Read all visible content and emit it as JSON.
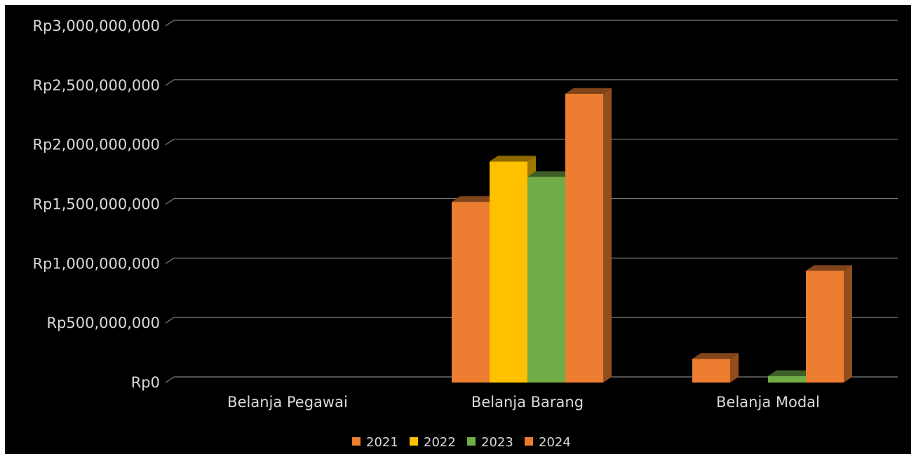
{
  "chart_data": {
    "type": "bar",
    "title": "",
    "xlabel": "",
    "ylabel": "",
    "categories": [
      "Belanja Pegawai",
      "Belanja Barang",
      "Belanja Modal"
    ],
    "series": [
      {
        "name": "2021",
        "color": "#ED7D31",
        "values": [
          0,
          1520000000,
          200000000
        ]
      },
      {
        "name": "2022",
        "color": "#FFC000",
        "values": [
          0,
          1860000000,
          0
        ]
      },
      {
        "name": "2023",
        "color": "#70AD47",
        "values": [
          0,
          1730000000,
          55000000
        ]
      },
      {
        "name": "2024",
        "color": "#ED7D31",
        "values": [
          0,
          2430000000,
          940000000
        ]
      }
    ],
    "ylim": [
      0,
      3000000000
    ],
    "yticks": [
      0,
      500000000,
      1000000000,
      1500000000,
      2000000000,
      2500000000,
      3000000000
    ],
    "ytick_labels": [
      "Rp0",
      "Rp500,000,000",
      "Rp1,000,000,000",
      "Rp1,500,000,000",
      "Rp2,000,000,000",
      "Rp2,500,000,000",
      "Rp3,000,000,000"
    ],
    "grid": true,
    "legend_position": "bottom",
    "style": "3d-column",
    "background": "#000000",
    "gridline_color": "#7f7f7f",
    "text_color": "#d9d9d9"
  }
}
